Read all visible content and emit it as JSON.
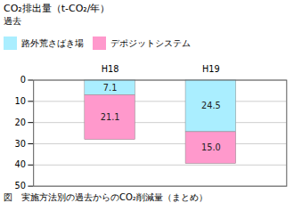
{
  "chart_data": {
    "type": "bar",
    "stacked": true,
    "title": "CO₂排出量（t-CO₂/年）",
    "subtitle": "過去",
    "caption": "図　実施方法別の過去からのCO₂削減量（まとめ）",
    "categories": [
      "H18",
      "H19"
    ],
    "series": [
      {
        "name": "路外荒さばき場",
        "color": "#aaeeff",
        "values": [
          7.1,
          24.5
        ],
        "value_labels": [
          "7.1",
          "24.5"
        ]
      },
      {
        "name": "デポジットシステム",
        "color": "#ff99cc",
        "values": [
          21.1,
          15.0
        ],
        "value_labels": [
          "21.1",
          "15.0"
        ]
      }
    ],
    "ylim": [
      50,
      0
    ],
    "yticks": [
      0,
      10,
      20,
      30,
      40,
      50
    ],
    "grid": true,
    "data_labels": true,
    "legend": "top"
  }
}
